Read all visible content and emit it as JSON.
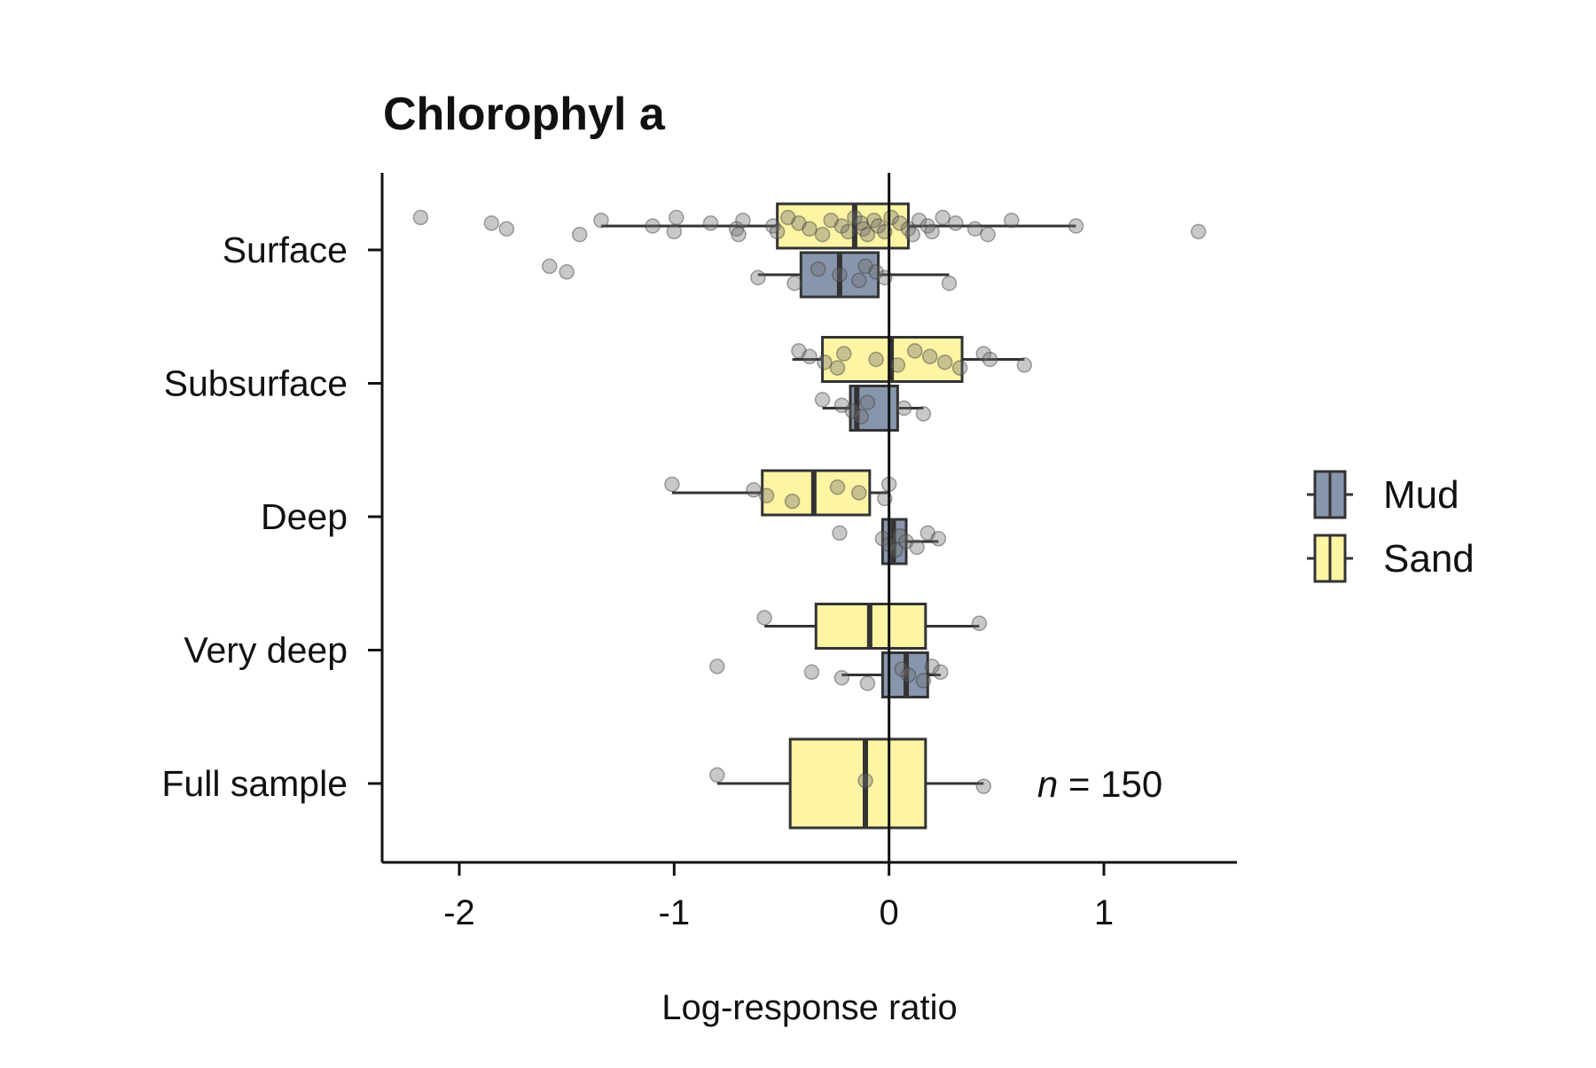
{
  "chart_data": {
    "type": "boxplot",
    "title": "Chlorophyl a",
    "xlabel": "Log-response ratio",
    "ylabel": "",
    "xlim": [
      -2.35,
      1.6
    ],
    "xticks": [
      -2,
      -1,
      0,
      1
    ],
    "xtick_labels": [
      "-2",
      "-1",
      "0",
      "1"
    ],
    "reference_line_x": 0,
    "categories": [
      "Surface",
      "Subsurface",
      "Deep",
      "Very deep",
      "Full sample"
    ],
    "legend": {
      "position": "right",
      "items": [
        {
          "name": "Mud",
          "color": "#8896ad"
        },
        {
          "name": "Sand",
          "color": "#fdf4a4"
        }
      ]
    },
    "series": [
      {
        "name": "Sand",
        "color": "#fdf4a4",
        "boxes": [
          {
            "category": "Surface",
            "whisker_low": -1.34,
            "q1": -0.52,
            "median": -0.16,
            "q3": 0.09,
            "whisker_high": 0.87
          },
          {
            "category": "Subsurface",
            "whisker_low": -0.45,
            "q1": -0.31,
            "median": 0.01,
            "q3": 0.34,
            "whisker_high": 0.63
          },
          {
            "category": "Deep",
            "whisker_low": -1.01,
            "q1": -0.59,
            "median": -0.35,
            "q3": -0.09,
            "whisker_high": 0.0
          },
          {
            "category": "Very deep",
            "whisker_low": -0.58,
            "q1": -0.34,
            "median": -0.09,
            "q3": 0.17,
            "whisker_high": 0.42
          },
          {
            "category": "Full sample",
            "whisker_low": -0.8,
            "q1": -0.46,
            "median": -0.11,
            "q3": 0.17,
            "whisker_high": 0.44
          }
        ],
        "points": [
          {
            "category": "Surface",
            "values": [
              -2.18,
              -1.85,
              -1.78,
              -1.44,
              -1.34,
              -1.1,
              -1.0,
              -0.99,
              -0.83,
              -0.71,
              -0.7,
              -0.68,
              -0.54,
              -0.52,
              -0.47,
              -0.42,
              -0.37,
              -0.31,
              -0.27,
              -0.22,
              -0.19,
              -0.16,
              -0.13,
              -0.12,
              -0.1,
              -0.07,
              -0.05,
              -0.02,
              0.01,
              0.05,
              0.09,
              0.11,
              0.14,
              0.18,
              0.2,
              0.25,
              0.31,
              0.4,
              0.46,
              0.57,
              0.87,
              1.44
            ]
          },
          {
            "category": "Subsurface",
            "values": [
              -0.42,
              -0.37,
              -0.3,
              -0.24,
              -0.21,
              -0.06,
              0.04,
              0.12,
              0.19,
              0.26,
              0.33,
              0.44,
              0.47,
              0.63
            ]
          },
          {
            "category": "Deep",
            "values": [
              -1.01,
              -0.63,
              -0.57,
              -0.45,
              -0.24,
              -0.14,
              -0.02,
              0.0
            ]
          },
          {
            "category": "Very deep",
            "values": [
              -0.58,
              0.42
            ]
          },
          {
            "category": "Full sample",
            "values": [
              -0.8,
              -0.11,
              0.44
            ]
          }
        ]
      },
      {
        "name": "Mud",
        "color": "#8896ad",
        "boxes": [
          {
            "category": "Surface",
            "whisker_low": -0.61,
            "q1": -0.41,
            "median": -0.23,
            "q3": -0.05,
            "whisker_high": 0.28
          },
          {
            "category": "Subsurface",
            "whisker_low": -0.31,
            "q1": -0.18,
            "median": -0.15,
            "q3": 0.04,
            "whisker_high": 0.16
          },
          {
            "category": "Deep",
            "whisker_low": -0.03,
            "q1": -0.03,
            "median": 0.02,
            "q3": 0.08,
            "whisker_high": 0.23
          },
          {
            "category": "Very deep",
            "whisker_low": -0.22,
            "q1": -0.03,
            "median": 0.08,
            "q3": 0.18,
            "whisker_high": 0.24
          }
        ],
        "points": [
          {
            "category": "Surface",
            "values": [
              -1.58,
              -1.5,
              -0.61,
              -0.44,
              -0.33,
              -0.23,
              -0.14,
              -0.11,
              -0.06,
              -0.02,
              0.28
            ]
          },
          {
            "category": "Subsurface",
            "values": [
              -0.31,
              -0.22,
              -0.17,
              -0.13,
              -0.1,
              0.07,
              0.16
            ]
          },
          {
            "category": "Deep",
            "values": [
              -0.23,
              -0.03,
              0.0,
              0.03,
              0.05,
              0.08,
              0.13,
              0.18,
              0.23
            ]
          },
          {
            "category": "Very deep",
            "values": [
              -0.8,
              -0.36,
              -0.22,
              -0.1,
              0.06,
              0.09,
              0.16,
              0.2,
              0.24
            ]
          }
        ]
      }
    ],
    "annotation": {
      "category": "Full sample",
      "x": 0.69,
      "symbol": "n",
      "text": " = 150"
    }
  }
}
